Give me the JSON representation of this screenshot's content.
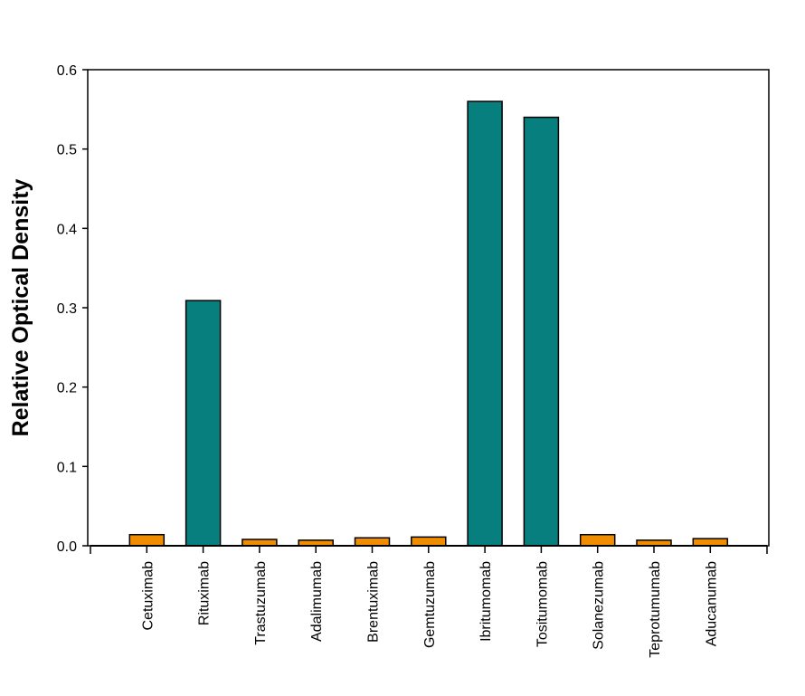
{
  "chart_data": {
    "type": "bar",
    "title": "",
    "xlabel": "",
    "ylabel": "Relative Optical Density",
    "ylim": [
      0,
      0.6
    ],
    "yticks": [
      "0.0",
      "0.1",
      "0.2",
      "0.3",
      "0.4",
      "0.5",
      "0.6"
    ],
    "grid": false,
    "legend": "none",
    "categories": [
      "Cetuximab",
      "Rituximab",
      "Trastuzumab",
      "Adalimumab",
      "Brentuximab",
      "Gemtuzumab",
      "Ibritumomab",
      "Tositumomab",
      "Solanezumab",
      "Teprotumumab",
      "Aducanumab"
    ],
    "values": [
      0.014,
      0.309,
      0.008,
      0.007,
      0.01,
      0.011,
      0.56,
      0.54,
      0.014,
      0.007,
      0.009
    ],
    "bar_colors": [
      "#f08c00",
      "#077f7f",
      "#f08c00",
      "#f08c00",
      "#f08c00",
      "#f08c00",
      "#077f7f",
      "#077f7f",
      "#f08c00",
      "#f08c00",
      "#f08c00"
    ]
  }
}
